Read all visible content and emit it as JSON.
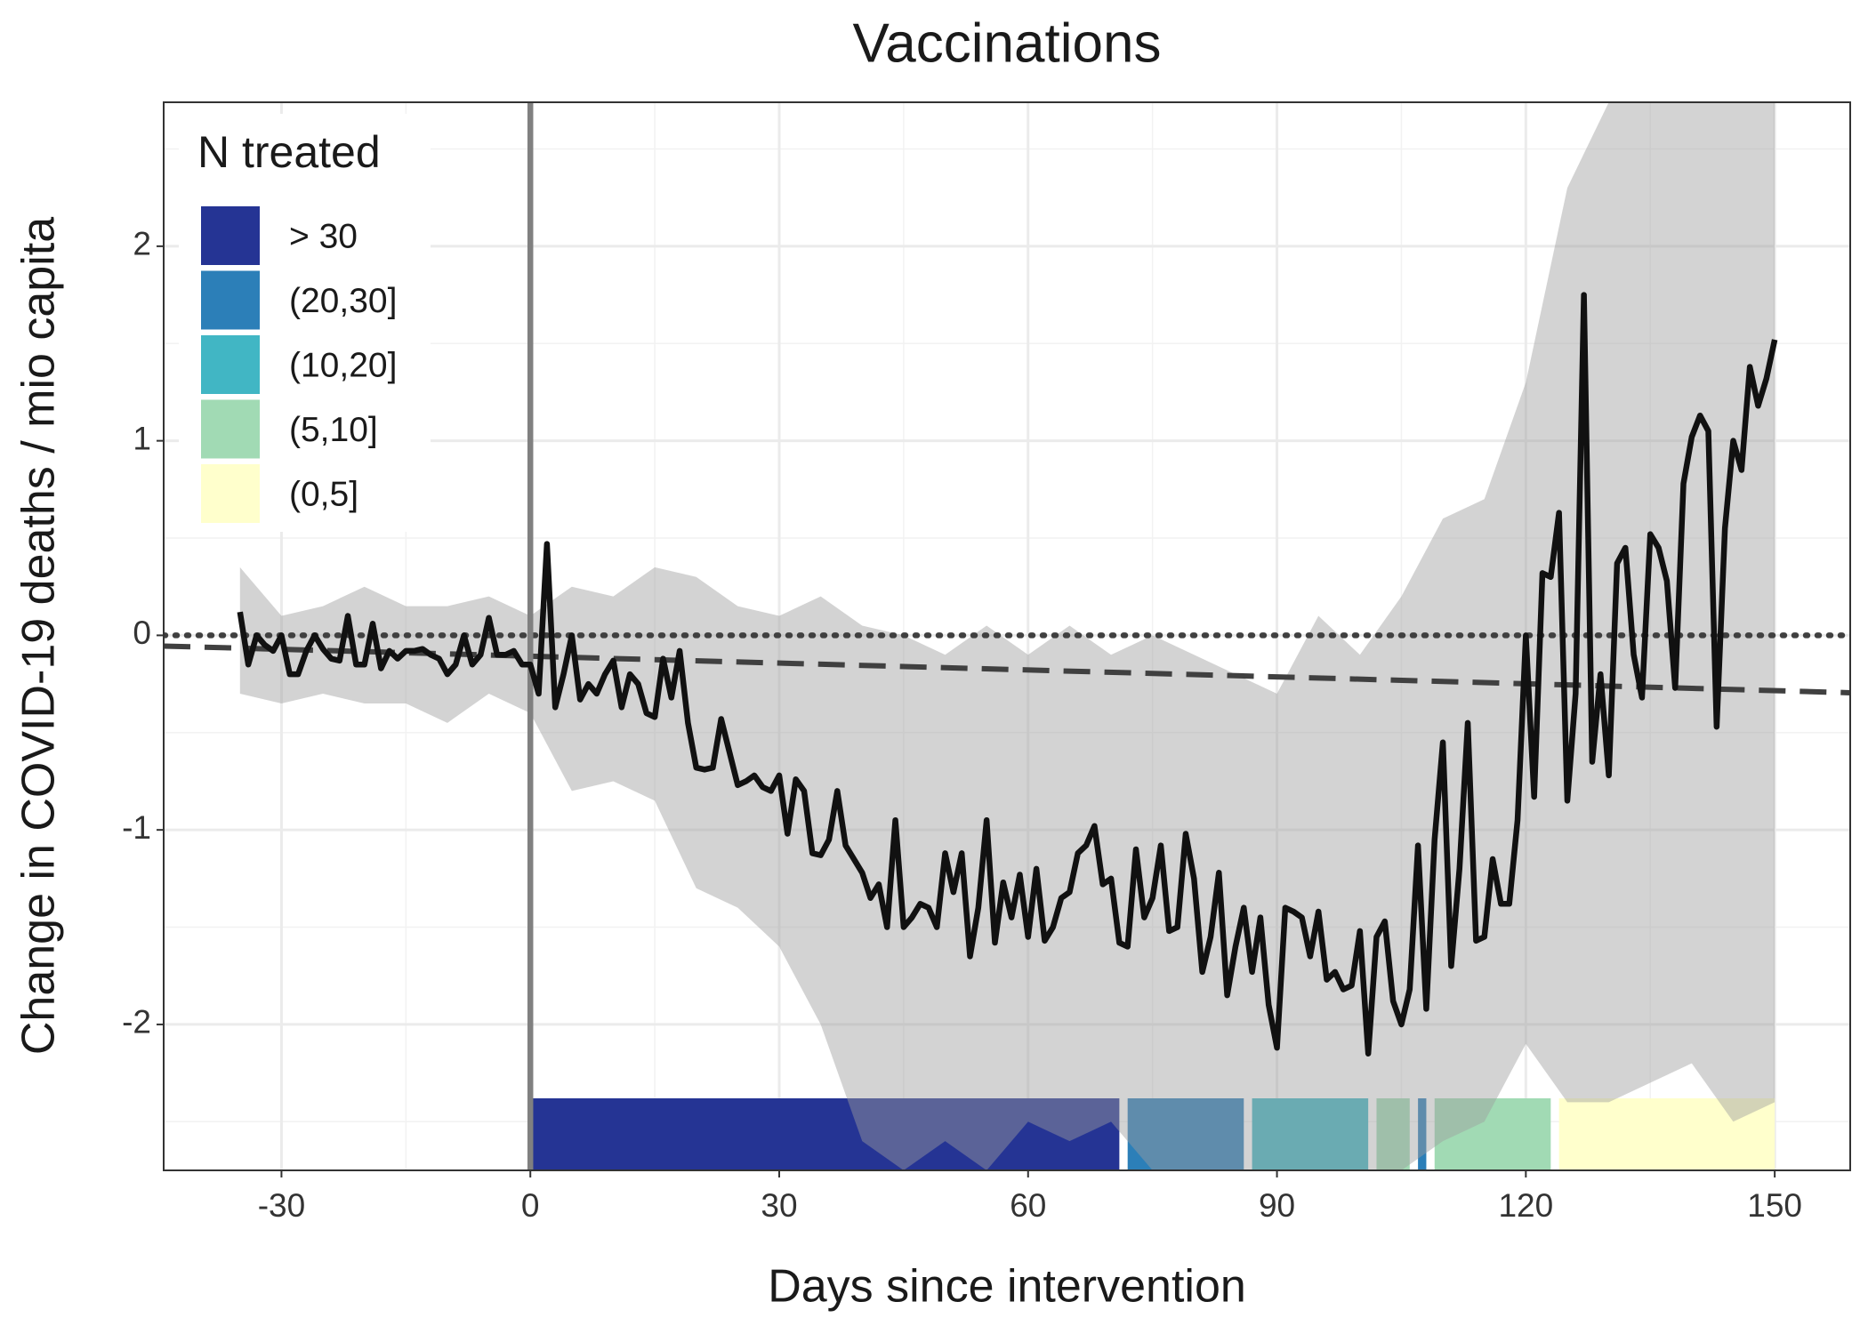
{
  "chart_data": {
    "type": "line",
    "title": "Vaccinations",
    "xlabel": "Days since intervention",
    "ylabel": "Change in COVID-19 deaths / mio capita",
    "xlim": [
      -44.2,
      159.1
    ],
    "ylim": [
      -2.75,
      2.74
    ],
    "xticks": [
      -30,
      0,
      30,
      60,
      90,
      120,
      150
    ],
    "yticks": [
      -2,
      -1,
      0,
      1,
      2
    ],
    "grid": true,
    "color": "#111111",
    "x": [
      -35,
      -34,
      -33,
      -32,
      -31,
      -30,
      -29,
      -28,
      -27,
      -26,
      -25,
      -24,
      -23,
      -22,
      -21,
      -20,
      -19,
      -18,
      -17,
      -16,
      -15,
      -14,
      -13,
      -12,
      -11,
      -10,
      -9,
      -8,
      -7,
      -6,
      -5,
      -4,
      -3,
      -2,
      -1,
      0,
      1,
      2,
      3,
      4,
      5,
      6,
      7,
      8,
      9,
      10,
      11,
      12,
      13,
      14,
      15,
      16,
      17,
      18,
      19,
      20,
      21,
      22,
      23,
      24,
      25,
      26,
      27,
      28,
      29,
      30,
      31,
      32,
      33,
      34,
      35,
      36,
      37,
      38,
      39,
      40,
      41,
      42,
      43,
      44,
      45,
      46,
      47,
      48,
      49,
      50,
      51,
      52,
      53,
      54,
      55,
      56,
      57,
      58,
      59,
      60,
      61,
      62,
      63,
      64,
      65,
      66,
      67,
      68,
      69,
      70,
      71,
      72,
      73,
      74,
      75,
      76,
      77,
      78,
      79,
      80,
      81,
      82,
      83,
      84,
      85,
      86,
      87,
      88,
      89,
      90,
      91,
      92,
      93,
      94,
      95,
      96,
      97,
      98,
      99,
      100,
      101,
      102,
      103,
      104,
      105,
      106,
      107,
      108,
      109,
      110,
      111,
      112,
      113,
      114,
      115,
      116,
      117,
      118,
      119,
      120,
      121,
      122,
      123,
      124,
      125,
      126,
      127,
      128,
      129,
      130,
      131,
      132,
      133,
      134,
      135,
      136,
      137,
      138,
      139,
      140,
      141,
      142,
      143,
      144,
      145,
      146,
      147,
      148,
      149,
      150
    ],
    "values": [
      0.12,
      -0.15,
      0.0,
      -0.05,
      -0.08,
      0.0,
      -0.2,
      -0.2,
      -0.08,
      0.0,
      -0.07,
      -0.12,
      -0.13,
      0.1,
      -0.15,
      -0.15,
      0.06,
      -0.17,
      -0.08,
      -0.12,
      -0.08,
      -0.08,
      -0.07,
      -0.1,
      -0.12,
      -0.2,
      -0.15,
      0.0,
      -0.15,
      -0.1,
      0.09,
      -0.1,
      -0.1,
      -0.08,
      -0.15,
      -0.15,
      -0.3,
      0.47,
      -0.37,
      -0.2,
      0.0,
      -0.33,
      -0.25,
      -0.3,
      -0.2,
      -0.13,
      -0.37,
      -0.2,
      -0.25,
      -0.4,
      -0.42,
      -0.12,
      -0.32,
      -0.08,
      -0.45,
      -0.68,
      -0.69,
      -0.68,
      -0.43,
      -0.6,
      -0.77,
      -0.75,
      -0.72,
      -0.78,
      -0.8,
      -0.72,
      -1.02,
      -0.74,
      -0.8,
      -1.12,
      -1.13,
      -1.05,
      -0.8,
      -1.08,
      -1.15,
      -1.22,
      -1.35,
      -1.28,
      -1.5,
      -0.95,
      -1.5,
      -1.45,
      -1.38,
      -1.4,
      -1.5,
      -1.12,
      -1.32,
      -1.12,
      -1.65,
      -1.4,
      -0.95,
      -1.58,
      -1.27,
      -1.45,
      -1.23,
      -1.55,
      -1.2,
      -1.57,
      -1.5,
      -1.35,
      -1.32,
      -1.12,
      -1.08,
      -0.98,
      -1.28,
      -1.25,
      -1.58,
      -1.6,
      -1.1,
      -1.45,
      -1.35,
      -1.08,
      -1.52,
      -1.5,
      -1.02,
      -1.25,
      -1.73,
      -1.55,
      -1.22,
      -1.85,
      -1.6,
      -1.4,
      -1.73,
      -1.45,
      -1.9,
      -2.12,
      -1.4,
      -1.42,
      -1.45,
      -1.65,
      -1.42,
      -1.77,
      -1.73,
      -1.82,
      -1.8,
      -1.52,
      -2.15,
      -1.55,
      -1.47,
      -1.88,
      -2.0,
      -1.82,
      -1.08,
      -1.92,
      -1.05,
      -0.55,
      -1.7,
      -1.2,
      -0.45,
      -1.57,
      -1.55,
      -1.15,
      -1.38,
      -1.38,
      -0.95,
      0.0,
      -0.83,
      0.32,
      0.3,
      0.63,
      -0.85,
      -0.3,
      1.75,
      -0.65,
      -0.2,
      -0.72,
      0.37,
      0.45,
      -0.1,
      -0.32,
      0.52,
      0.45,
      0.28,
      -0.27,
      0.78,
      1.02,
      1.13,
      1.05,
      -0.47,
      0.55,
      1.0,
      0.85,
      1.38,
      1.18,
      1.32,
      1.52
    ],
    "band": {
      "color": "#9e9e9e",
      "x": [
        -35,
        -30,
        -25,
        -20,
        -15,
        -10,
        -5,
        0,
        5,
        10,
        15,
        20,
        25,
        30,
        35,
        40,
        45,
        50,
        55,
        60,
        65,
        70,
        75,
        80,
        85,
        90,
        95,
        100,
        105,
        110,
        115,
        120,
        125,
        130,
        135,
        140,
        145,
        150
      ],
      "lower": [
        -0.3,
        -0.35,
        -0.3,
        -0.35,
        -0.35,
        -0.45,
        -0.3,
        -0.4,
        -0.8,
        -0.75,
        -0.85,
        -1.3,
        -1.4,
        -1.6,
        -2.0,
        -2.6,
        -2.75,
        -2.6,
        -2.75,
        -2.5,
        -2.6,
        -2.5,
        -2.75,
        -2.75,
        -2.75,
        -2.75,
        -2.75,
        -2.75,
        -2.75,
        -2.6,
        -2.5,
        -2.1,
        -2.4,
        -2.4,
        -2.3,
        -2.2,
        -2.5,
        -2.4
      ],
      "upper": [
        0.35,
        0.1,
        0.15,
        0.25,
        0.15,
        0.15,
        0.2,
        0.1,
        0.25,
        0.2,
        0.35,
        0.3,
        0.15,
        0.1,
        0.2,
        0.05,
        0.0,
        -0.1,
        0.05,
        -0.1,
        0.05,
        -0.1,
        0.0,
        -0.1,
        -0.2,
        -0.3,
        0.1,
        -0.1,
        0.2,
        0.6,
        0.7,
        1.3,
        2.3,
        2.74,
        2.74,
        2.74,
        2.74,
        2.74
      ]
    },
    "trend": {
      "x": [
        -44.2,
        159.1
      ],
      "values": [
        -0.055,
        -0.295
      ],
      "color": "#404040"
    },
    "hline": 0,
    "vline": 0,
    "legend": {
      "title": "N treated",
      "position": "top-left"
    },
    "groups": [
      {
        "name": "> 30",
        "color": "#253494"
      },
      {
        "name": "(20,30]",
        "color": "#2c7fb8"
      },
      {
        "name": "(10,20]",
        "color": "#41b6c4"
      },
      {
        "name": "(5,10]",
        "color": "#a1dab4"
      },
      {
        "name": "(0,5]",
        "color": "#ffffcc"
      }
    ],
    "segments": {
      "start": [
        0,
        72,
        87,
        102,
        107,
        109,
        124
      ],
      "end": [
        71,
        86,
        101,
        106,
        108,
        123,
        150
      ],
      "group": [
        0,
        1,
        2,
        3,
        1,
        3,
        4
      ]
    }
  }
}
